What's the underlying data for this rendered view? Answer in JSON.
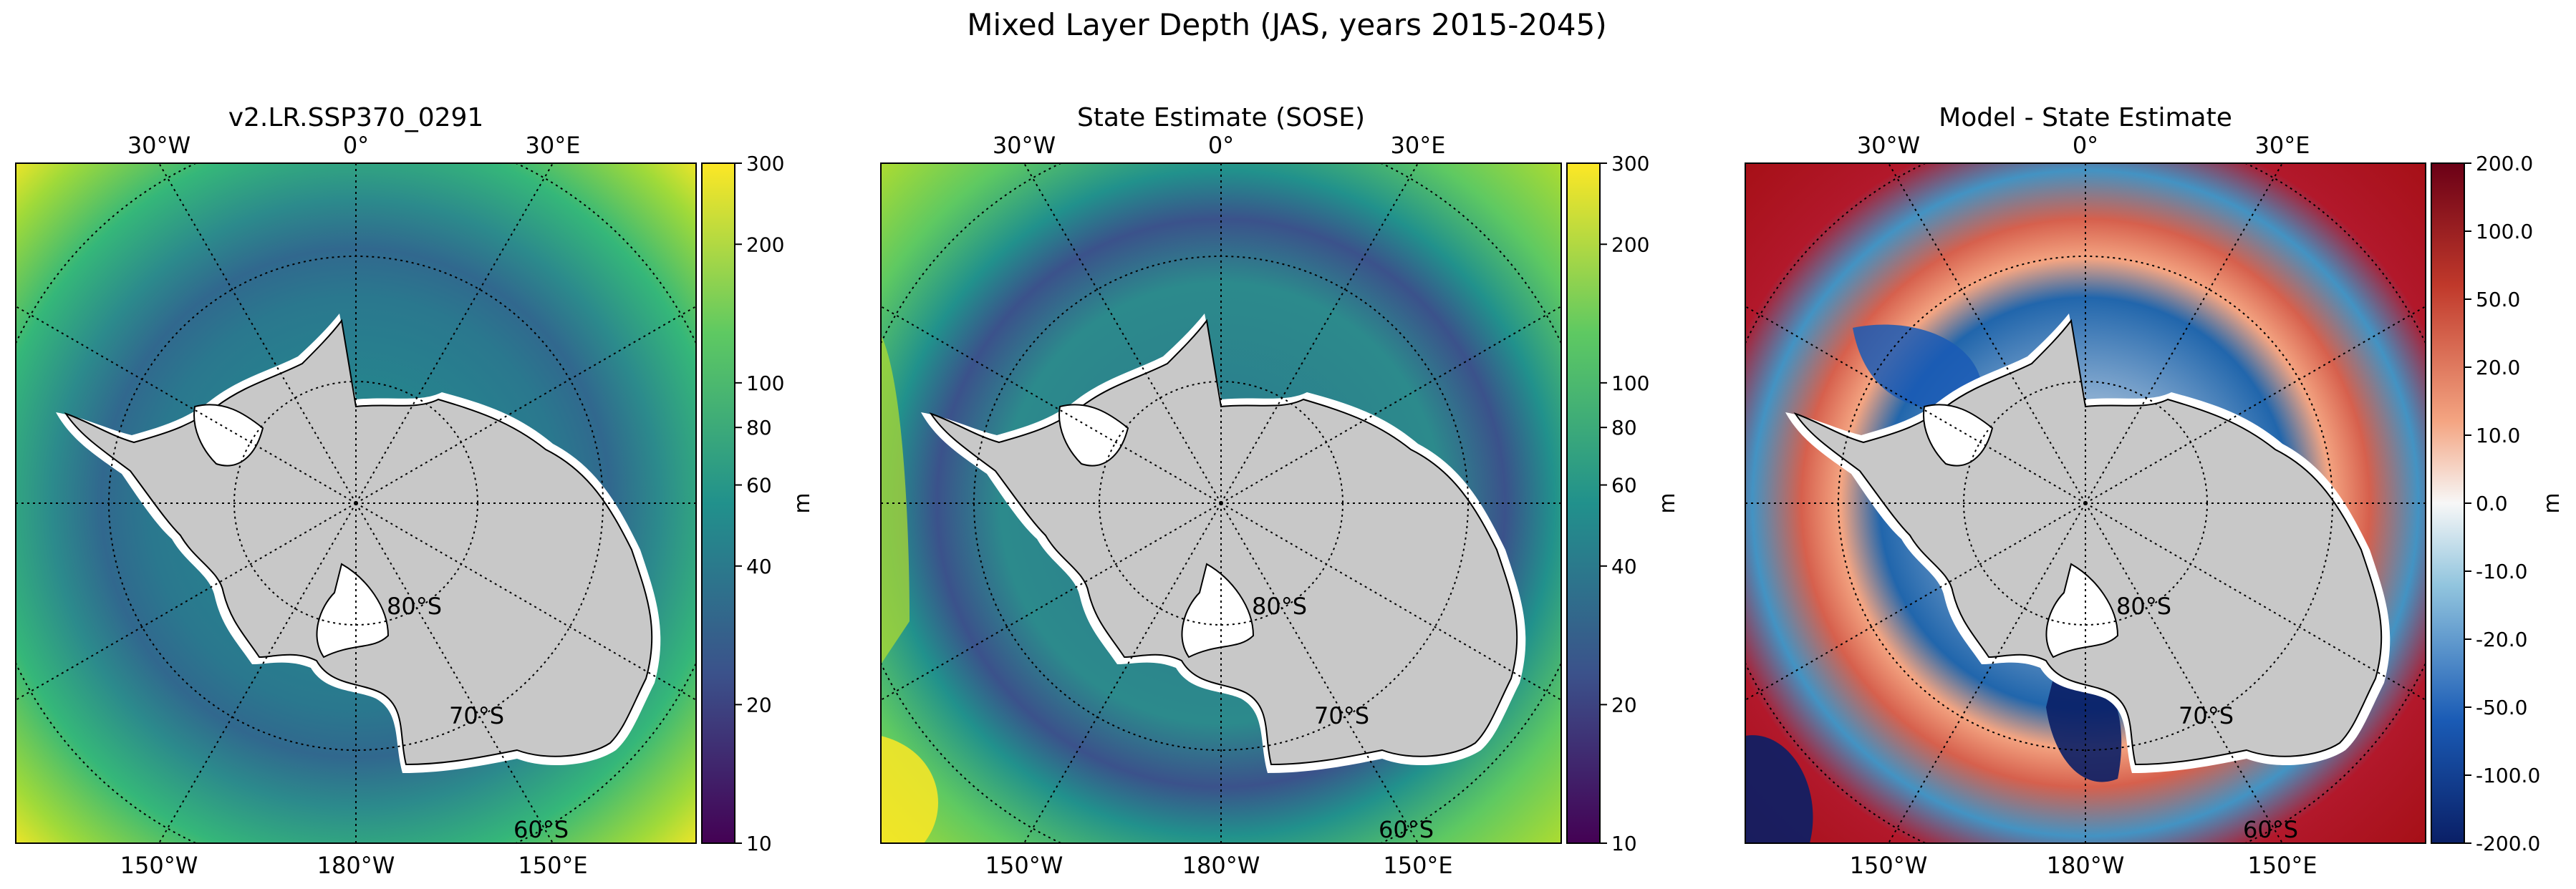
{
  "figure": {
    "suptitle": "Mixed Layer Depth (JAS, years 2015-2045)"
  },
  "panels": [
    {
      "title": "v2.LR.SSP370_0291",
      "colormap": "viridis",
      "colorbar": {
        "unit": "m",
        "scale": "log",
        "range": [
          10,
          300
        ],
        "ticks": [
          "10",
          "20",
          "40",
          "60",
          "80",
          "100",
          "200",
          "300"
        ]
      }
    },
    {
      "title": "State Estimate (SOSE)",
      "colormap": "viridis",
      "colorbar": {
        "unit": "m",
        "scale": "log",
        "range": [
          10,
          300
        ],
        "ticks": [
          "10",
          "20",
          "40",
          "60",
          "80",
          "100",
          "200",
          "300"
        ]
      }
    },
    {
      "title": "Model - State Estimate",
      "colormap": "red-white-blue diverging",
      "colorbar": {
        "unit": "m",
        "scale": "symlog",
        "range": [
          -200,
          200
        ],
        "ticks": [
          "200.0",
          "100.0",
          "50.0",
          "20.0",
          "10.0",
          "0.0",
          "-10.0",
          "-20.0",
          "-50.0",
          "-100.0",
          "-200.0"
        ]
      }
    }
  ],
  "map_labels": {
    "top": [
      "30°W",
      "0°",
      "30°E"
    ],
    "bottom": [
      "150°W",
      "180°W",
      "150°E"
    ],
    "inner": [
      "80°S",
      "70°S",
      "60°S"
    ]
  },
  "colors": {
    "land": "#c8c8c8",
    "ice_shelf": "#ffffff",
    "viridis_low": "#440154",
    "viridis_mid": "#21918c",
    "viridis_high": "#fde725",
    "diverging_low": "#0a1f66",
    "diverging_mid": "#f7f7f7",
    "diverging_high": "#6b0016"
  }
}
